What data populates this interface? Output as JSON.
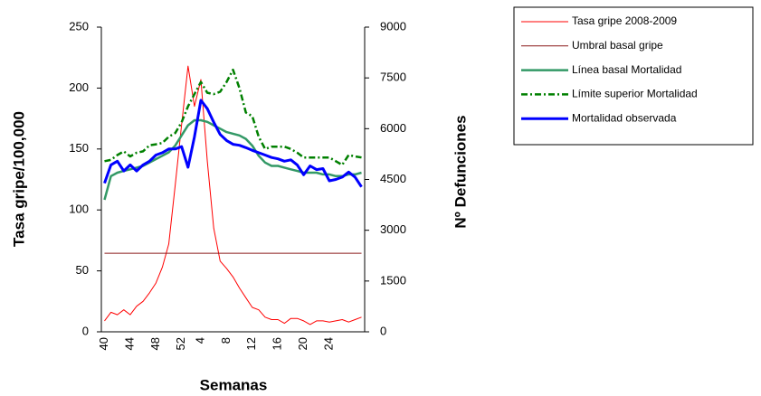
{
  "chart_data": {
    "type": "line",
    "x_label": "Semanas",
    "y_label": "Tasa gripe/100,000",
    "y2_label": "Nº Defunciones",
    "categories": [
      "40",
      null,
      null,
      null,
      "44",
      null,
      null,
      null,
      "48",
      null,
      null,
      null,
      "52",
      null,
      null,
      "4",
      null,
      null,
      null,
      "8",
      null,
      null,
      null,
      "12",
      null,
      null,
      null,
      "16",
      null,
      null,
      null,
      "20",
      null,
      null,
      null,
      "24",
      null,
      null,
      null,
      null,
      null
    ],
    "ylim": [
      0,
      250
    ],
    "yticks": [
      0,
      50,
      100,
      150,
      200,
      250
    ],
    "y2lim": [
      0,
      9000
    ],
    "y2ticks": [
      0,
      1500,
      3000,
      4500,
      6000,
      7500,
      9000
    ],
    "series": [
      {
        "name": "Tasa gripe 2008-2009",
        "color": "#ff0000",
        "width": 1,
        "line_style": "solid",
        "axis": "y",
        "values": [
          9,
          16,
          14,
          18,
          14,
          21,
          25,
          32,
          40,
          53,
          72,
          120,
          170,
          218,
          185,
          207,
          140,
          85,
          58,
          52,
          45,
          36,
          28,
          20,
          18,
          12,
          10,
          10,
          7,
          11,
          11,
          9,
          6,
          9,
          9,
          8,
          9,
          10,
          8,
          10,
          12
        ]
      },
      {
        "name": "Umbral basal gripe",
        "color": "#8b1a1a",
        "width": 1,
        "line_style": "solid",
        "axis": "y",
        "values": [
          64.5,
          64.5,
          64.5,
          64.5,
          64.5,
          64.5,
          64.5,
          64.5,
          64.5,
          64.5,
          64.5,
          64.5,
          64.5,
          64.5,
          64.5,
          64.5,
          64.5,
          64.5,
          64.5,
          64.5,
          64.5,
          64.5,
          64.5,
          64.5,
          64.5,
          64.5,
          64.5,
          64.5,
          64.5,
          64.5,
          64.5,
          64.5,
          64.5,
          64.5,
          64.5,
          64.5,
          64.5,
          64.5,
          64.5,
          64.5,
          64.5
        ]
      },
      {
        "name": "Línea basal Mortalidad",
        "color": "#339966",
        "width": 2.5,
        "line_style": "solid",
        "axis": "y2",
        "values": [
          3900,
          4600,
          4700,
          4750,
          4800,
          4850,
          4900,
          5000,
          5100,
          5200,
          5300,
          5500,
          5800,
          6100,
          6250,
          6250,
          6200,
          6100,
          6000,
          5900,
          5850,
          5800,
          5700,
          5500,
          5200,
          5000,
          4900,
          4900,
          4850,
          4800,
          4750,
          4700,
          4700,
          4700,
          4650,
          4650,
          4600,
          4600,
          4650,
          4650,
          4700
        ]
      },
      {
        "name": "Límite superior Mortalidad",
        "color": "#008000",
        "width": 2.5,
        "line_style": "dash-dot",
        "axis": "y2",
        "values": [
          5040,
          5080,
          5220,
          5330,
          5180,
          5290,
          5330,
          5510,
          5540,
          5580,
          5760,
          5870,
          6190,
          6660,
          7020,
          7380,
          7060,
          7020,
          7090,
          7380,
          7740,
          7200,
          6480,
          6370,
          5760,
          5400,
          5470,
          5470,
          5470,
          5400,
          5290,
          5150,
          5150,
          5150,
          5150,
          5150,
          5040,
          4930,
          5220,
          5180,
          5150
        ]
      },
      {
        "name": "Mortalidad observada",
        "color": "#0000ff",
        "width": 3,
        "line_style": "solid",
        "axis": "y2",
        "values": [
          4390,
          4930,
          5040,
          4750,
          4930,
          4750,
          4930,
          5040,
          5220,
          5290,
          5400,
          5400,
          5470,
          4860,
          5760,
          6840,
          6590,
          6190,
          5830,
          5650,
          5540,
          5510,
          5440,
          5360,
          5290,
          5220,
          5150,
          5110,
          5040,
          5080,
          4930,
          4640,
          4900,
          4790,
          4820,
          4460,
          4500,
          4570,
          4720,
          4570,
          4280
        ]
      }
    ]
  }
}
